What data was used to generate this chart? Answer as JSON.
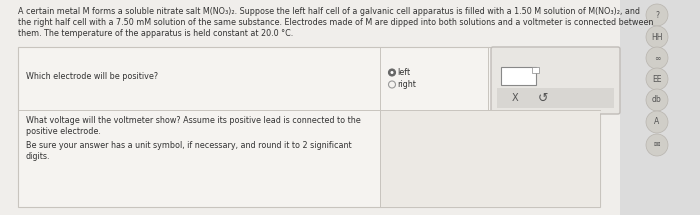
{
  "bg_color": "#dcdcdc",
  "main_bg": "#f0eeeb",
  "table_bg": "#f5f3f0",
  "table_border": "#c8c4be",
  "text_color": "#333333",
  "title_line1": "A certain metal M forms a soluble nitrate salt M(NO₃)₂. Suppose the left half cell of a galvanic cell apparatus is filled with a 1.50 M solution of M(NO₃)₂, and",
  "title_line2": "the right half cell with a 7.50 mM solution of the same substance. Electrodes made of M are dipped into both solutions and a voltmeter is connected between",
  "title_line3": "them. The temperature of the apparatus is held constant at 20.0 °C.",
  "q1_label": "Which electrode will be positive?",
  "q1_opt1": "left",
  "q1_opt2": "right",
  "q2_label1": "What voltage will the voltmeter show? Assume its positive lead is connected to the",
  "q2_label2": "positive electrode.",
  "q2_label3": "Be sure your answer has a unit symbol, if necessary, and round it to 2 significant",
  "q2_label4": "digits.",
  "x_label": "X",
  "retry_label": "↺",
  "icon_labels": [
    "?",
    "HH",
    "∞",
    "EE",
    "db",
    "A",
    "✉"
  ],
  "icon_bg": "#d0cec8",
  "icon_border": "#b8b4ae",
  "right_popup_bg": "#e8e6e2",
  "right_popup_border": "#c0bcb8",
  "answer_bar_bg": "#d8d6d2",
  "radio_filled_color": "#666666",
  "radio_empty_color": "#999999"
}
